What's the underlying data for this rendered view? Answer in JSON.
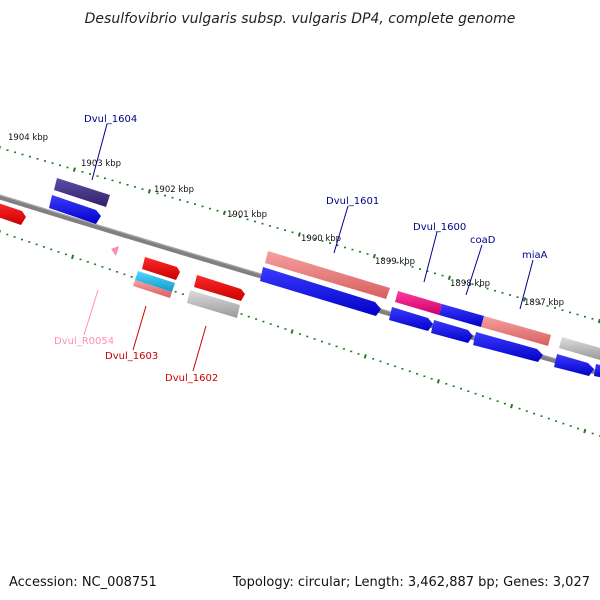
{
  "title": "Desulfovibrio vulgaris subsp. vulgaris DP4, complete genome",
  "accession": "Accession: NC_008751",
  "topology": "Topology: circular; Length: 3,462,887 bp; Genes: 3,027",
  "scale_labels": [
    "1904 kbp",
    "1903 kbp",
    "1902 kbp",
    "1901 kbp",
    "1900 kbp",
    "1899 kbp",
    "1898 kbp",
    "1897 kbp"
  ],
  "gene_labels": [
    {
      "text": "Dvul_1604",
      "color": "#00008b"
    },
    {
      "text": "Dvul_1601",
      "color": "#00008b"
    },
    {
      "text": "Dvul_1600",
      "color": "#00008b"
    },
    {
      "text": "coaD",
      "color": "#00008b"
    },
    {
      "text": "miaA",
      "color": "#00008b"
    },
    {
      "text": "Dvul_R0054",
      "color": "#ff8fb8"
    },
    {
      "text": "Dvul_1603",
      "color": "#cc0000"
    },
    {
      "text": "Dvul_1602",
      "color": "#cc0000"
    }
  ],
  "colors": {
    "backbone": "#777777",
    "tick": "#1f7a1f",
    "cds_blue": "#0000ee",
    "cds_red": "#ee0000",
    "cds_salmon": "#e88080",
    "cds_grey": "#bbbbbb",
    "cds_purple": "#443388",
    "cds_magenta": "#ee1188",
    "cds_cyan": "#22bbee",
    "rna_pink": "#ff88bb"
  }
}
